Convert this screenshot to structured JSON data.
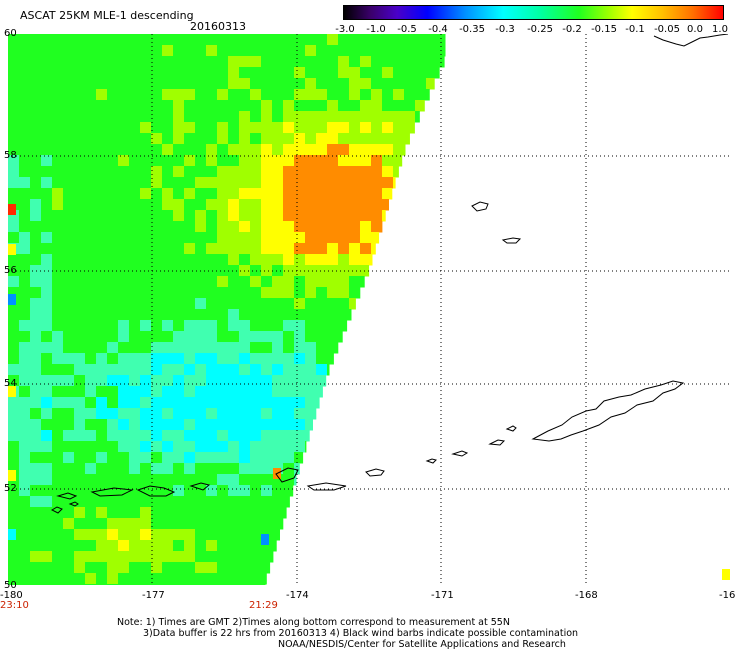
{
  "header": {
    "title": "ASCAT 25KM MLE-1 descending",
    "date": "20160313"
  },
  "colorbar": {
    "labels": [
      "-3.0",
      "-1.0",
      "-0.5",
      "-0.4",
      "-0.35",
      "-0.3",
      "-0.25",
      "-0.2",
      "-0.15",
      "-0.1",
      "-0.05",
      "0.0",
      "1.0"
    ]
  },
  "axes": {
    "lon_labels": [
      "-180",
      "-177",
      "-174",
      "-171",
      "-168",
      "-16"
    ],
    "lat_labels": [
      "60",
      "58",
      "56",
      "54",
      "52",
      "50"
    ]
  },
  "times": {
    "left": "23:10",
    "mid": "21:29"
  },
  "notes": {
    "line1": "Note: 1) Times are GMT 2)Times along bottom correspond to measurement at 55N",
    "line2": "3)Data buffer is 22 hrs from 20160313 4) Black wind barbs indicate possible contamination",
    "line3": "NOAA/NESDIS/Center for Satellite Applications and Research"
  },
  "colors": {
    "cyan": "#00ffff",
    "green": "#20ff20",
    "lime": "#a0ff00",
    "yellow": "#ffff00",
    "orange": "#ff8c00",
    "red": "#ff2a00"
  }
}
